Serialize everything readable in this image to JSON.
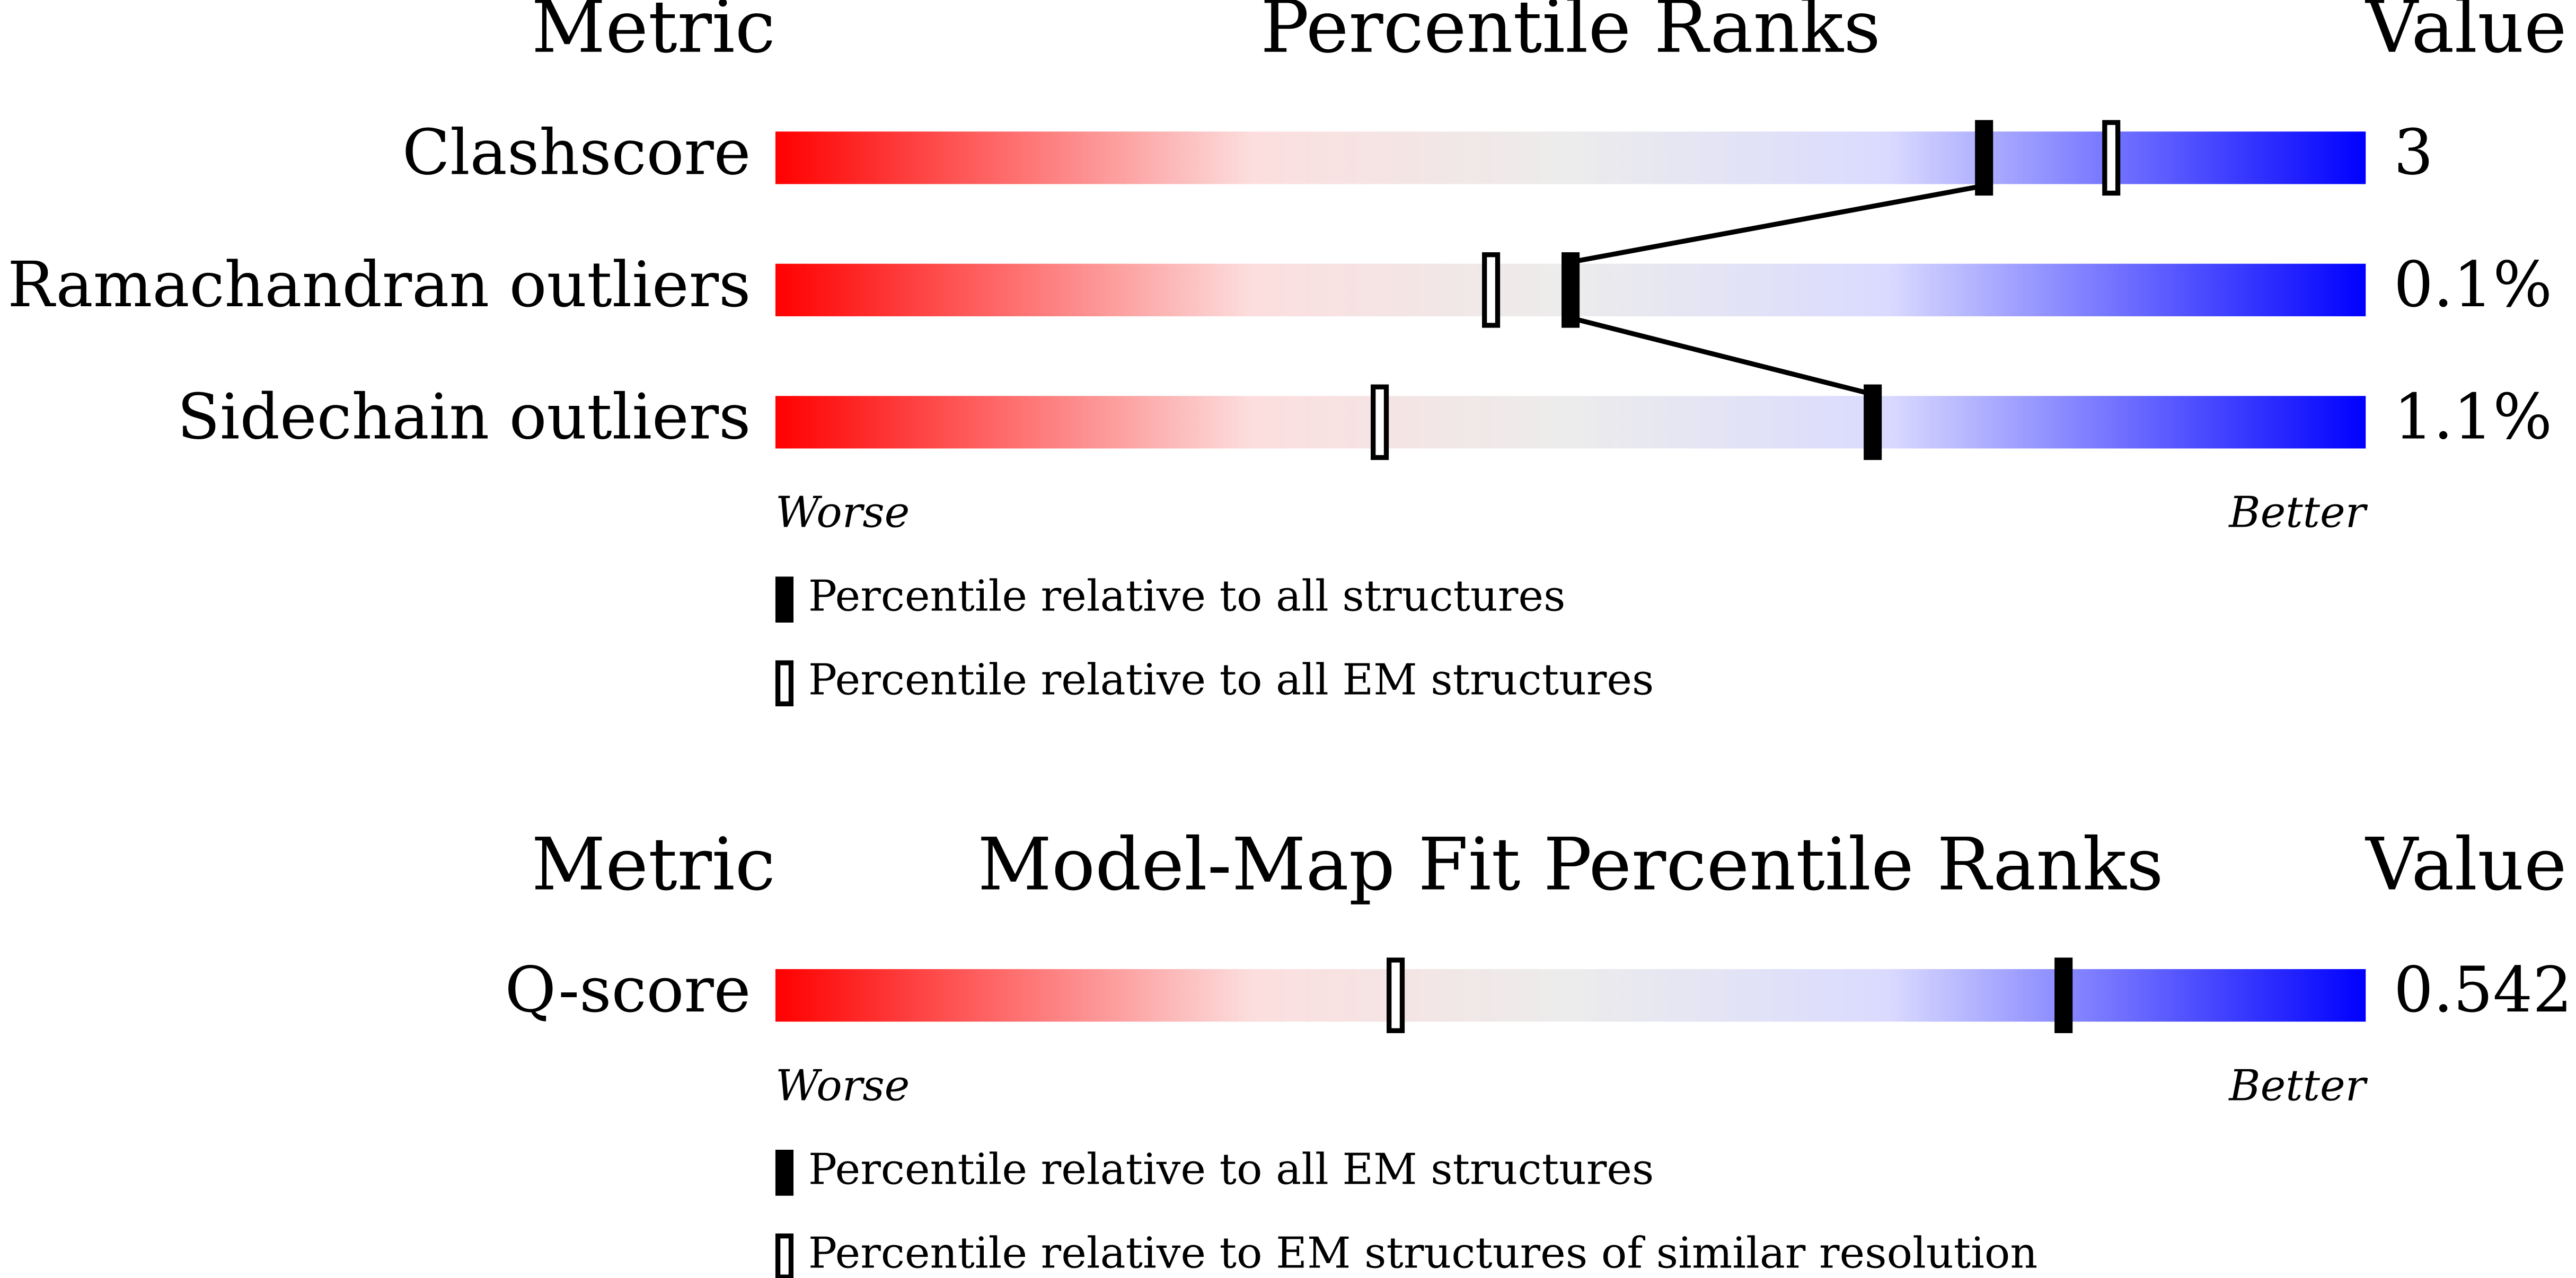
{
  "panels": [
    {
      "headers": {
        "metric": "Metric",
        "title": "Percentile Ranks",
        "value": "Value"
      },
      "xlim": [
        0,
        100
      ],
      "rows": [
        {
          "metric": "Clashscore",
          "value": "3",
          "percentiles": [
            76,
            84
          ]
        },
        {
          "metric": "Ramachandran outliers",
          "value": "0.1%",
          "percentiles": [
            50,
            45
          ]
        },
        {
          "metric": "Sidechain outliers",
          "value": "1.1%",
          "percentiles": [
            69,
            38
          ]
        }
      ],
      "worse": "Worse",
      "better": "Better",
      "legend": [
        "Percentile relative to all structures",
        "Percentile relative to all EM structures"
      ]
    },
    {
      "headers": {
        "metric": "Metric",
        "title": "Model-Map Fit Percentile Ranks",
        "value": "Value"
      },
      "xlim": [
        0,
        100
      ],
      "rows": [
        {
          "metric": "Q-score",
          "value": "0.542",
          "percentiles": [
            81,
            39
          ]
        }
      ],
      "worse": "Worse",
      "better": "Better",
      "legend": [
        "Percentile relative to all EM structures",
        "Percentile relative to EM structures of similar resolution"
      ]
    }
  ]
}
